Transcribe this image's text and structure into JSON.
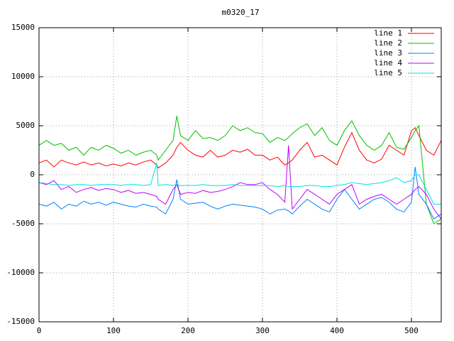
{
  "chart_data": {
    "type": "line",
    "title": "m0320_17",
    "x": [
      0,
      10,
      20,
      30,
      40,
      50,
      60,
      70,
      80,
      90,
      100,
      110,
      120,
      130,
      140,
      150,
      158,
      160,
      170,
      180,
      185,
      190,
      200,
      210,
      220,
      230,
      240,
      250,
      260,
      270,
      280,
      290,
      300,
      310,
      320,
      330,
      335,
      340,
      350,
      360,
      370,
      380,
      390,
      400,
      410,
      420,
      430,
      440,
      450,
      460,
      470,
      480,
      490,
      500,
      505,
      510,
      520,
      530,
      540
    ],
    "series": [
      {
        "name": "line 1",
        "color": "#ff0000",
        "values": [
          1200,
          1500,
          800,
          1500,
          1200,
          1000,
          1300,
          1000,
          1200,
          900,
          1100,
          900,
          1200,
          1000,
          1300,
          1500,
          1000,
          700,
          1200,
          2000,
          2800,
          3300,
          2500,
          2000,
          1800,
          2500,
          1800,
          2000,
          2500,
          2300,
          2600,
          2000,
          2000,
          1500,
          1800,
          1000,
          1200,
          1500,
          2500,
          3300,
          1800,
          2000,
          1500,
          1000,
          2800,
          4300,
          2500,
          1500,
          1200,
          1600,
          3000,
          2500,
          2000,
          4500,
          4800,
          4000,
          2500,
          2000,
          3500
        ]
      },
      {
        "name": "line 2",
        "color": "#00c000",
        "values": [
          3000,
          3500,
          3000,
          3200,
          2500,
          2800,
          2000,
          2800,
          2500,
          3000,
          2700,
          2200,
          2500,
          2000,
          2300,
          2500,
          2000,
          1500,
          2500,
          3500,
          6000,
          4000,
          3500,
          4500,
          3700,
          3800,
          3500,
          4000,
          5000,
          4500,
          4800,
          4300,
          4200,
          3300,
          3800,
          3500,
          3800,
          4200,
          4800,
          5200,
          4000,
          4800,
          3500,
          3000,
          4500,
          5500,
          4000,
          3000,
          2500,
          3000,
          4300,
          2800,
          2600,
          3800,
          4500,
          5000,
          -3000,
          -5000,
          -4500
        ]
      },
      {
        "name": "line 3",
        "color": "#0080ff",
        "values": [
          -3000,
          -3200,
          -2800,
          -3500,
          -3000,
          -3200,
          -2700,
          -3000,
          -2800,
          -3100,
          -2800,
          -3000,
          -3200,
          -3300,
          -3000,
          -3200,
          -3300,
          -3500,
          -4000,
          -2500,
          -500,
          -2500,
          -3000,
          -2900,
          -2800,
          -3200,
          -3500,
          -3200,
          -3000,
          -3100,
          -3200,
          -3300,
          -3500,
          -4000,
          -3600,
          -3500,
          -3700,
          -4000,
          -3200,
          -2500,
          -3000,
          -3500,
          -3800,
          -2500,
          -1500,
          -2500,
          -3500,
          -3000,
          -2500,
          -2300,
          -2800,
          -3500,
          -3800,
          -2800,
          800,
          -2000,
          -3000,
          -4500,
          -4000
        ]
      },
      {
        "name": "line 4",
        "color": "#c000ff",
        "values": [
          -800,
          -1000,
          -600,
          -1500,
          -1200,
          -1800,
          -1500,
          -1300,
          -1600,
          -1400,
          -1500,
          -1800,
          -1600,
          -1900,
          -1800,
          -2000,
          -2200,
          -2500,
          -3000,
          -1500,
          -1000,
          -2000,
          -1800,
          -1900,
          -1600,
          -1800,
          -1700,
          -1500,
          -1200,
          -800,
          -1000,
          -1000,
          -800,
          -1500,
          -2000,
          -2800,
          3000,
          -3500,
          -2500,
          -1500,
          -2000,
          -2500,
          -3000,
          -2000,
          -1500,
          -1000,
          -3000,
          -2500,
          -2200,
          -2000,
          -2500,
          -3000,
          -2500,
          -2000,
          -1500,
          -1200,
          -2000,
          -3500,
          -4500
        ]
      },
      {
        "name": "line 5",
        "color": "#00e0e0",
        "values": [
          -800,
          -900,
          -1000,
          -1000,
          -1100,
          -1000,
          -1000,
          -1100,
          -1000,
          -1000,
          -1000,
          -1100,
          -1000,
          -1000,
          -1100,
          -1000,
          1200,
          -1100,
          -1000,
          -1100,
          -1000,
          -1100,
          -1100,
          -1100,
          -1000,
          -1100,
          -1100,
          -1100,
          -1000,
          -1100,
          -1100,
          -1100,
          -1100,
          -1100,
          -1200,
          -1100,
          -1200,
          -1200,
          -1200,
          -1100,
          -1100,
          -1200,
          -1200,
          -1100,
          -1000,
          -800,
          -900,
          -1000,
          -900,
          -800,
          -600,
          -300,
          -800,
          -600,
          0,
          0,
          -1500,
          -3000,
          -3000
        ]
      }
    ],
    "xlim": [
      0,
      540
    ],
    "xticks": [
      0,
      100,
      200,
      300,
      400,
      500
    ],
    "ylim": [
      -15000,
      15000
    ],
    "yticks": [
      -15000,
      -10000,
      -5000,
      0,
      5000,
      10000,
      15000
    ],
    "grid": true,
    "legend": "top-right"
  }
}
